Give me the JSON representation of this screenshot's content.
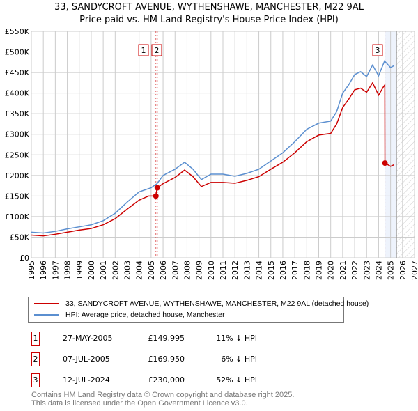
{
  "title": "33, SANDYCROFT AVENUE, WYTHENSHAWE, MANCHESTER, M22 9AL",
  "subtitle": "Price paid vs. HM Land Registry's House Price Index (HPI)",
  "chart_data": {
    "type": "line",
    "xlim": [
      1995,
      2027
    ],
    "ylim": [
      0,
      550000
    ],
    "x_ticks": [
      "1995",
      "1996",
      "1997",
      "1998",
      "1999",
      "2000",
      "2001",
      "2002",
      "2003",
      "2004",
      "2005",
      "2006",
      "2007",
      "2008",
      "2009",
      "2010",
      "2011",
      "2012",
      "2013",
      "2014",
      "2015",
      "2016",
      "2017",
      "2018",
      "2019",
      "2020",
      "2021",
      "2022",
      "2023",
      "2024",
      "2025",
      "2026",
      "2027"
    ],
    "y_ticks": [
      {
        "v": 0,
        "label": "£0"
      },
      {
        "v": 50000,
        "label": "£50K"
      },
      {
        "v": 100000,
        "label": "£100K"
      },
      {
        "v": 150000,
        "label": "£150K"
      },
      {
        "v": 200000,
        "label": "£200K"
      },
      {
        "v": 250000,
        "label": "£250K"
      },
      {
        "v": 300000,
        "label": "£300K"
      },
      {
        "v": 350000,
        "label": "£350K"
      },
      {
        "v": 400000,
        "label": "£400K"
      },
      {
        "v": 450000,
        "label": "£450K"
      },
      {
        "v": 500000,
        "label": "£500K"
      },
      {
        "v": 550000,
        "label": "£550K"
      }
    ],
    "grid": true,
    "series": [
      {
        "name": "33, SANDYCROFT AVENUE, WYTHENSHAWE, MANCHESTER, M22 9AL (detached house)",
        "color": "#cc0000",
        "x": [
          1995,
          1996,
          1997,
          1998,
          1999,
          2000,
          2001,
          2002,
          2003,
          2004,
          2004.8,
          2005.4,
          2005.5,
          2006,
          2007,
          2007.8,
          2008.5,
          2009.2,
          2010,
          2011,
          2012,
          2013,
          2014,
          2015,
          2016,
          2017,
          2018,
          2019,
          2020,
          2020.5,
          2021,
          2021.5,
          2022,
          2022.5,
          2023,
          2023.5,
          2024,
          2024.4,
          2024.52,
          2024.53,
          2025,
          2025.3
        ],
        "y": [
          55000,
          53000,
          57000,
          62000,
          67000,
          71000,
          80000,
          95000,
          118000,
          140000,
          150000,
          149995,
          169950,
          180000,
          195000,
          213000,
          197000,
          173000,
          183000,
          183000,
          181000,
          188000,
          197000,
          215000,
          232000,
          255000,
          282000,
          298000,
          302000,
          325000,
          365000,
          385000,
          408000,
          412000,
          402000,
          425000,
          395000,
          415000,
          420000,
          230000,
          222000,
          226000
        ]
      },
      {
        "name": "HPI: Average price, detached house, Manchester",
        "color": "#5b8fd0",
        "x": [
          1995,
          1996,
          1997,
          1998,
          1999,
          2000,
          2001,
          2002,
          2003,
          2004,
          2005,
          2005.5,
          2006,
          2007,
          2007.8,
          2008.5,
          2009.2,
          2010,
          2011,
          2012,
          2013,
          2014,
          2015,
          2016,
          2017,
          2018,
          2019,
          2020,
          2020.5,
          2021,
          2021.5,
          2022,
          2022.5,
          2023,
          2023.5,
          2024,
          2024.5,
          2025,
          2025.3
        ],
        "y": [
          62000,
          60000,
          64000,
          70000,
          75000,
          80000,
          90000,
          108000,
          135000,
          160000,
          170000,
          180000,
          200000,
          215000,
          232000,
          215000,
          190000,
          203000,
          203000,
          198000,
          205000,
          215000,
          235000,
          255000,
          282000,
          312000,
          327000,
          332000,
          355000,
          400000,
          420000,
          445000,
          452000,
          440000,
          468000,
          442000,
          478000,
          462000,
          467000
        ]
      }
    ],
    "annotations": [
      {
        "label": "1",
        "x": 2005.4,
        "y": 149995
      },
      {
        "label": "2",
        "x": 2005.52,
        "y": 169950
      },
      {
        "label": "3",
        "x": 2024.53,
        "y": 230000
      }
    ],
    "shaded_region": [
      2024.53,
      2025.5
    ],
    "hatched_region": [
      2025.5,
      2027
    ],
    "legend_position": "bottom"
  },
  "legend": {
    "items": [
      "33, SANDYCROFT AVENUE, WYTHENSHAWE, MANCHESTER, M22 9AL (detached house)",
      "HPI: Average price, detached house, Manchester"
    ]
  },
  "transactions": [
    {
      "num": "1",
      "date": "27-MAY-2005",
      "price": "£149,995",
      "delta": "11% ↓ HPI"
    },
    {
      "num": "2",
      "date": "07-JUL-2005",
      "price": "£169,950",
      "delta": "6% ↓ HPI"
    },
    {
      "num": "3",
      "date": "12-JUL-2024",
      "price": "£230,000",
      "delta": "52% ↓ HPI"
    }
  ],
  "footer": [
    "Contains HM Land Registry data © Crown copyright and database right 2025.",
    "This data is licensed under the Open Government Licence v3.0."
  ]
}
